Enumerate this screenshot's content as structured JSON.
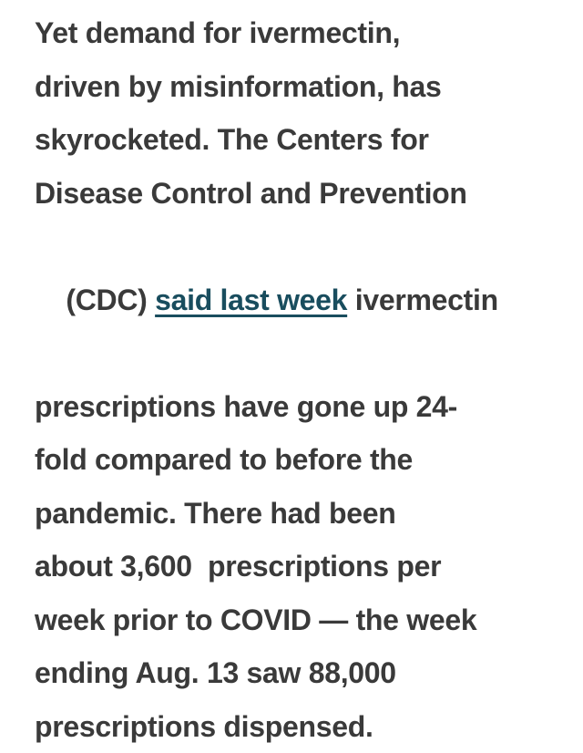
{
  "page": {
    "background": "#ffffff"
  },
  "colors": {
    "body_text": "#3a3a3a",
    "link": "#194d5e"
  },
  "article": {
    "paragraph_text": "Yet demand for ivermectin, driven by misinformation, has skyrocketed. The Centers for Disease Control and Prevention (CDC) said last week ivermectin prescriptions have gone up 24-fold compared to before the pandemic. There had been about 3,600  prescriptions per week prior to COVID — the week ending Aug. 13 saw 88,000 prescriptions dispensed.",
    "lines": [
      {
        "text": "Yet demand for ivermectin,"
      },
      {
        "text": "driven by misinformation, has"
      },
      {
        "text": "skyrocketed. The Centers for"
      },
      {
        "text": "Disease Control and Prevention"
      },
      {
        "prefix": "(CDC) ",
        "link_text": "said last week",
        "suffix": " ivermectin"
      },
      {
        "text": "prescriptions have gone up 24-"
      },
      {
        "text": "fold compared to before the"
      },
      {
        "text": "pandemic. There had been"
      },
      {
        "text": "about 3,600  prescriptions per"
      },
      {
        "text": "week prior to COVID — the week"
      },
      {
        "text": "ending Aug. 13 saw 88,000"
      },
      {
        "text": "prescriptions dispensed."
      }
    ]
  }
}
